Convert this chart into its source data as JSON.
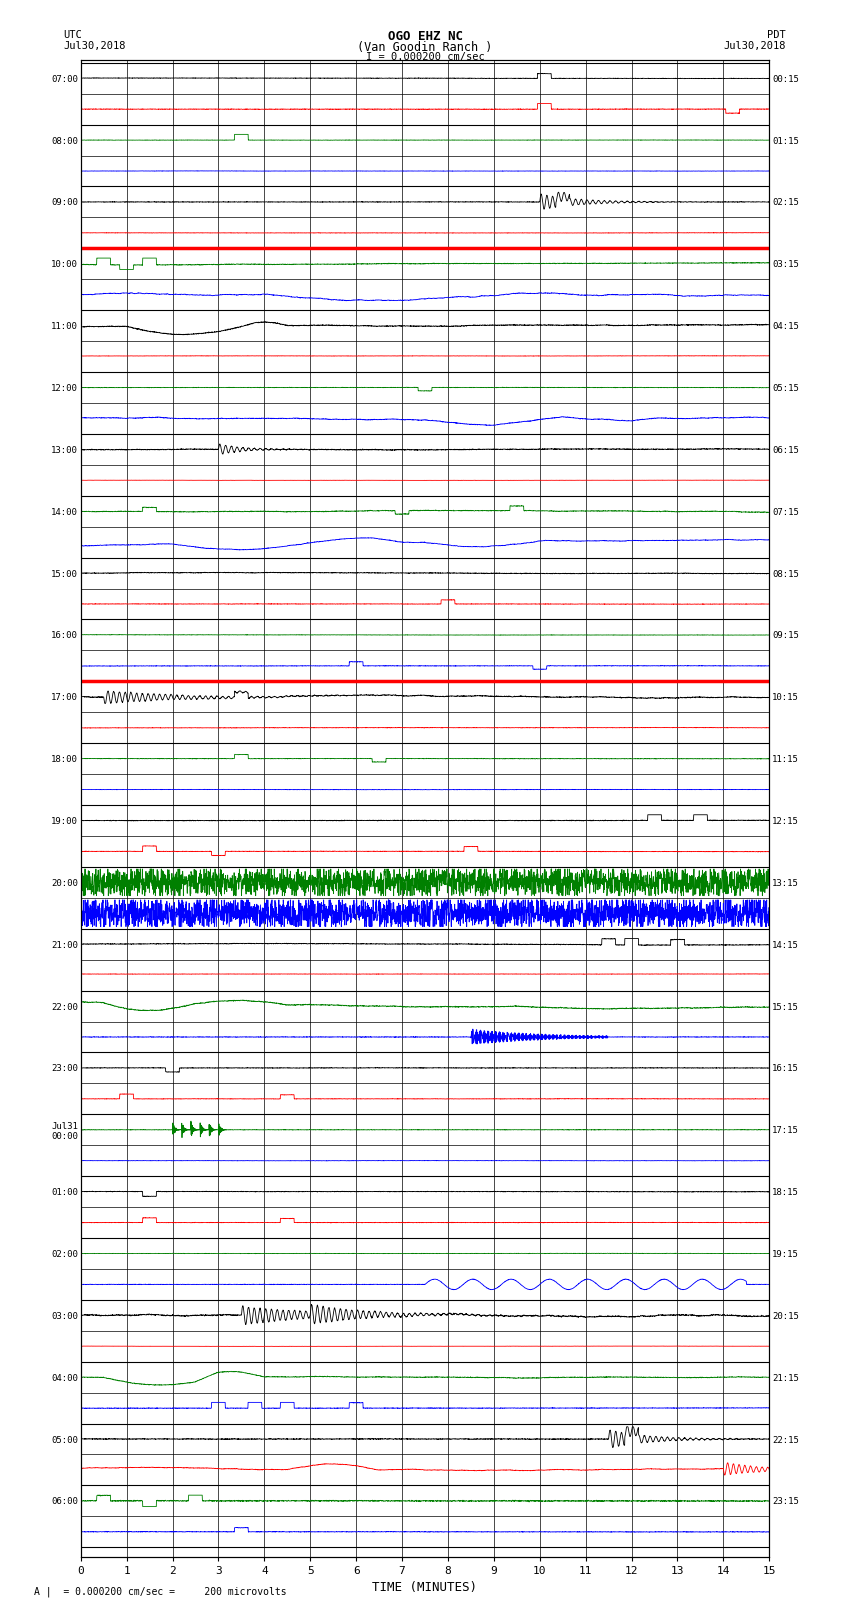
{
  "title_line1": "OGO EHZ NC",
  "title_line2": "(Van Goodin Ranch )",
  "title_line3": "I = 0.000200 cm/sec",
  "left_header_line1": "UTC",
  "left_header_line2": "Jul30,2018",
  "right_header_line1": "PDT",
  "right_header_line2": "Jul30,2018",
  "xlabel": "TIME (MINUTES)",
  "footer": "A |  = 0.000200 cm/sec =     200 microvolts",
  "xlim": [
    0,
    15
  ],
  "xticks": [
    0,
    1,
    2,
    3,
    4,
    5,
    6,
    7,
    8,
    9,
    10,
    11,
    12,
    13,
    14,
    15
  ],
  "num_traces": 48,
  "background_color": "#ffffff",
  "grid_color": "#999999",
  "utc_labels": [
    "07:00",
    "",
    "08:00",
    "",
    "09:00",
    "",
    "10:00",
    "",
    "11:00",
    "",
    "12:00",
    "",
    "13:00",
    "",
    "14:00",
    "",
    "15:00",
    "",
    "16:00",
    "",
    "17:00",
    "",
    "18:00",
    "",
    "19:00",
    "",
    "20:00",
    "",
    "21:00",
    "",
    "22:00",
    "",
    "23:00",
    "",
    "Jul31\n00:00",
    "",
    "01:00",
    "",
    "02:00",
    "",
    "03:00",
    "",
    "04:00",
    "",
    "05:00",
    "",
    "06:00",
    ""
  ],
  "pdt_labels": [
    "00:15",
    "",
    "01:15",
    "",
    "02:15",
    "",
    "03:15",
    "",
    "04:15",
    "",
    "05:15",
    "",
    "06:15",
    "",
    "07:15",
    "",
    "08:15",
    "",
    "09:15",
    "",
    "10:15",
    "",
    "11:15",
    "",
    "12:15",
    "",
    "13:15",
    "",
    "14:15",
    "",
    "15:15",
    "",
    "16:15",
    "",
    "17:15",
    "",
    "18:15",
    "",
    "19:15",
    "",
    "20:15",
    "",
    "21:15",
    "",
    "22:15",
    "",
    "23:15",
    ""
  ],
  "trace_colors": [
    "black",
    "red",
    "green",
    "blue",
    "black",
    "red",
    "green",
    "blue",
    "black",
    "red",
    "green",
    "blue",
    "black",
    "red",
    "green",
    "blue",
    "black",
    "red",
    "green",
    "blue",
    "black",
    "red",
    "green",
    "blue",
    "black",
    "red",
    "green",
    "blue",
    "black",
    "red",
    "green",
    "blue",
    "black",
    "red",
    "green",
    "blue",
    "black",
    "red",
    "green",
    "blue",
    "black",
    "red",
    "green",
    "blue",
    "black",
    "red",
    "green",
    "blue"
  ]
}
